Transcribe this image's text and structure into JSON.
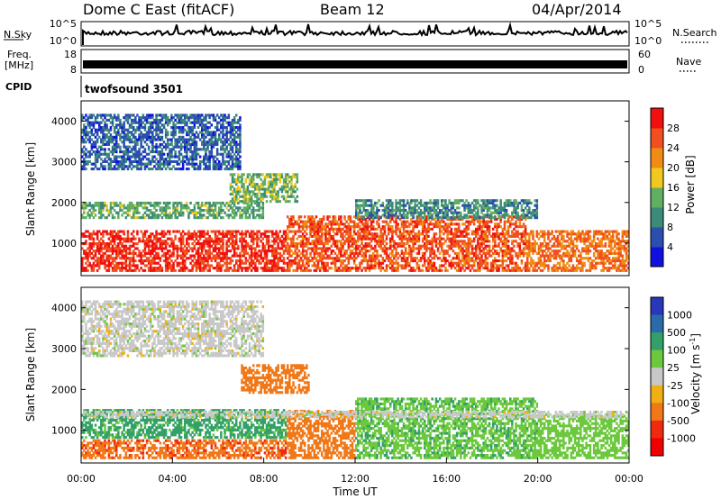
{
  "header": {
    "station": "Dome C East (fitACF)",
    "beam": "Beam 12",
    "date": "04/Apr/2014"
  },
  "top_panels": {
    "nsky_label": "N.Sky",
    "nsky_ticks": [
      "10^5",
      "10^0"
    ],
    "nsearch_label": "N.Search",
    "nsearch_ticks": [
      "10^5",
      "10^0"
    ],
    "freq_label": "Freq.",
    "freq_unit": "[MHz]",
    "freq_ticks": [
      "18",
      "8"
    ],
    "nave_label": "Nave",
    "nave_ticks": [
      "60",
      "0"
    ],
    "cpid_label": "CPID",
    "cpid_text": "twofsound 3501"
  },
  "colors": {
    "power": [
      "#1010e0",
      "#2a4fae",
      "#3c8a78",
      "#62ae62",
      "#f0c81e",
      "#f08c14",
      "#f05020",
      "#f01010"
    ],
    "velocity": [
      "#2838b8",
      "#2a6aa8",
      "#32a068",
      "#6cc83c",
      "#c8c8c8",
      "#f0b014",
      "#f07818",
      "#f02a10",
      "#f00000"
    ]
  },
  "chart_data": [
    {
      "type": "heatmap",
      "panel": "power",
      "ylabel": "Slant Range [km]",
      "yticks": [
        1000,
        2000,
        3000,
        4000
      ],
      "ylim": [
        200,
        4500
      ],
      "xlim": [
        0,
        24
      ],
      "colorbar_label": "Power [dB]",
      "colorbar_ticks": [
        "4",
        "8",
        "12",
        "16",
        "20",
        "24",
        "28"
      ],
      "colorbar_range": [
        0,
        32
      ],
      "bands": [
        {
          "t0": 0,
          "t1": 9,
          "r0": 300,
          "r1": 1300,
          "value": 28
        },
        {
          "t0": 9,
          "t1": 19.5,
          "r0": 300,
          "r1": 1700,
          "value": 26
        },
        {
          "t0": 19.5,
          "t1": 24,
          "r0": 300,
          "r1": 1300,
          "value": 24
        },
        {
          "t0": 0,
          "t1": 8,
          "r0": 1600,
          "r1": 2000,
          "value": 13
        },
        {
          "t0": 0,
          "t1": 7,
          "r0": 2800,
          "r1": 4200,
          "value": 7
        },
        {
          "t0": 6.5,
          "t1": 9.5,
          "r0": 2000,
          "r1": 2700,
          "value": 14
        },
        {
          "t0": 12,
          "t1": 20,
          "r0": 1600,
          "r1": 2100,
          "value": 10
        }
      ]
    },
    {
      "type": "heatmap",
      "panel": "velocity",
      "ylabel": "Slant Range [km]",
      "xlabel": "Time UT",
      "yticks": [
        1000,
        2000,
        3000,
        4000
      ],
      "ylim": [
        200,
        4500
      ],
      "xlim": [
        0,
        24
      ],
      "xticks": [
        "00:00",
        "04:00",
        "08:00",
        "12:00",
        "16:00",
        "20:00",
        "00:00"
      ],
      "colorbar_label": "Velocity [m s^-1]",
      "colorbar_ticks": [
        "1000",
        "500",
        "100",
        "25",
        "-25",
        "-100",
        "-500",
        "-1000"
      ],
      "bands": [
        {
          "t0": 0,
          "t1": 9,
          "r0": 300,
          "r1": 800,
          "value": -400
        },
        {
          "t0": 0,
          "t1": 9,
          "r0": 800,
          "r1": 1500,
          "value": 150
        },
        {
          "t0": 9,
          "t1": 12,
          "r0": 300,
          "r1": 1500,
          "value": -300
        },
        {
          "t0": 12,
          "t1": 20,
          "r0": 300,
          "r1": 1800,
          "value": 80
        },
        {
          "t0": 20,
          "t1": 24,
          "r0": 300,
          "r1": 1400,
          "value": 60
        },
        {
          "t0": 0,
          "t1": 24,
          "r0": 1300,
          "r1": 1500,
          "value": 0
        },
        {
          "t0": 0,
          "t1": 8,
          "r0": 2800,
          "r1": 4200,
          "value": 0
        },
        {
          "t0": 7,
          "t1": 10,
          "r0": 1900,
          "r1": 2600,
          "value": -200
        }
      ]
    }
  ]
}
